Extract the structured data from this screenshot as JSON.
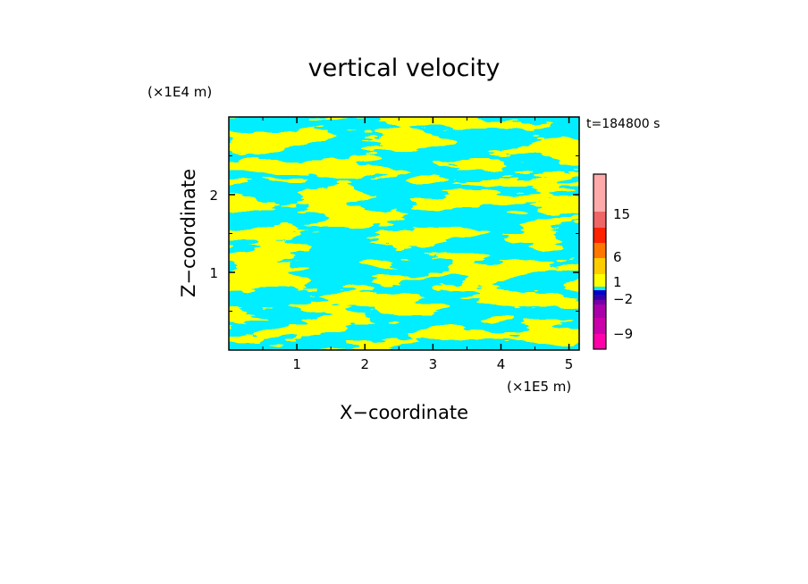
{
  "chart_data": {
    "type": "heatmap",
    "title": "vertical velocity",
    "xlabel": "X−coordinate",
    "ylabel": "Z−coordinate",
    "x_unit": "(×1E5 m)",
    "y_unit": "(×1E4 m)",
    "time_label": "t=184800 s",
    "xlim": [
      0,
      5.15
    ],
    "ylim": [
      0,
      3.0
    ],
    "x_ticks": [
      1,
      2,
      3,
      4,
      5
    ],
    "y_ticks": [
      1,
      2
    ],
    "x_tick_labels": [
      "1",
      "2",
      "3",
      "4",
      "5"
    ],
    "y_tick_labels": [
      "1",
      "2"
    ],
    "grid": false,
    "field_colors": {
      "positive": "#ffff00",
      "negative": "#00eeff"
    },
    "colorbar": {
      "colors": [
        "#ff00aa",
        "#cc00aa",
        "#aa00aa",
        "#7700aa",
        "#3300aa",
        "#0000cc",
        "#00eeff",
        "#ffff00",
        "#ffcc00",
        "#ff7700",
        "#ff2200",
        "#ee6666",
        "#ffaaaa",
        "#ffeeee"
      ],
      "tick_labels": [
        {
          "label": "−9",
          "value": -9
        },
        {
          "label": "−2",
          "value": -2
        },
        {
          "label": "1",
          "value": 1
        },
        {
          "label": "6",
          "value": 6
        },
        {
          "label": "15",
          "value": 15
        }
      ]
    }
  }
}
